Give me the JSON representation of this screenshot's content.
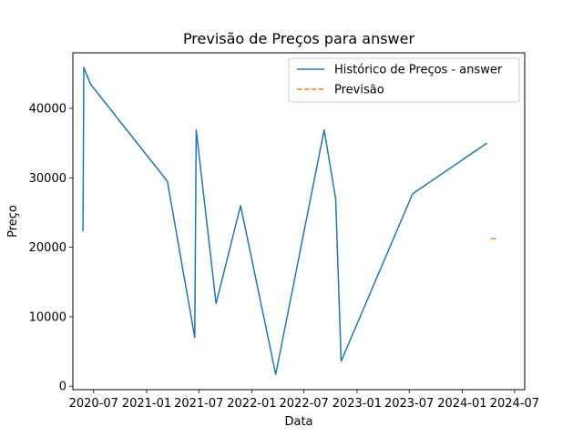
{
  "chart_data": {
    "type": "line",
    "title": "Previsão de Preços para answer",
    "xlabel": "Data",
    "ylabel": "Preço",
    "x_tick_labels": [
      "2020-07",
      "2021-01",
      "2021-07",
      "2022-01",
      "2022-07",
      "2023-01",
      "2023-07",
      "2024-01",
      "2024-07"
    ],
    "y_ticks": [
      0,
      10000,
      20000,
      30000,
      40000
    ],
    "xlim": [
      "2020-04-20",
      "2024-08-05"
    ],
    "ylim": [
      -500,
      48000
    ],
    "grid": false,
    "legend_position": "top-right",
    "series": [
      {
        "name": "Histórico de Preços - answer",
        "color": "#1f77b4",
        "style": "solid",
        "points": [
          {
            "x": "2020-05-25",
            "y": 22300
          },
          {
            "x": "2020-05-28",
            "y": 45900
          },
          {
            "x": "2020-06-20",
            "y": 43500
          },
          {
            "x": "2021-03-14",
            "y": 29500
          },
          {
            "x": "2021-06-17",
            "y": 7000
          },
          {
            "x": "2021-06-22",
            "y": 36900
          },
          {
            "x": "2021-08-30",
            "y": 11900
          },
          {
            "x": "2021-11-23",
            "y": 26000
          },
          {
            "x": "2022-03-25",
            "y": 1700
          },
          {
            "x": "2022-09-09",
            "y": 36900
          },
          {
            "x": "2022-10-19",
            "y": 27000
          },
          {
            "x": "2022-11-07",
            "y": 3600
          },
          {
            "x": "2023-07-13",
            "y": 27700
          },
          {
            "x": "2024-03-27",
            "y": 35000
          }
        ]
      },
      {
        "name": "Previsão",
        "color": "#ff7f0e",
        "style": "dashed",
        "points": [
          {
            "x": "2024-04-10",
            "y": 21300
          },
          {
            "x": "2024-04-30",
            "y": 21150
          }
        ]
      }
    ]
  }
}
